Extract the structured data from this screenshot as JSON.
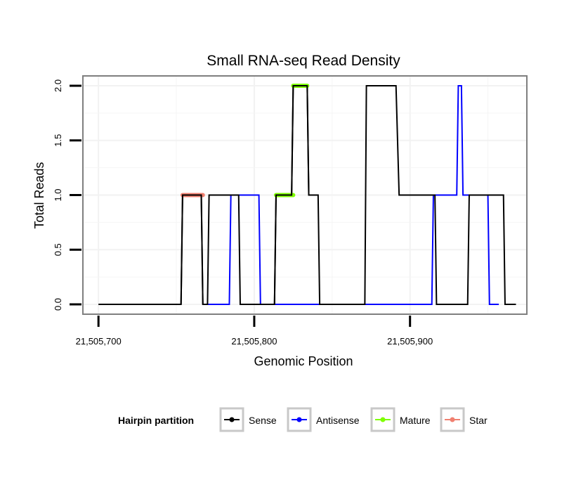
{
  "chart_data": {
    "type": "line",
    "title": "Small RNA-seq Read Density",
    "xlabel": "Genomic Position",
    "ylabel": "Total Reads",
    "xlim": [
      21505690,
      21505975
    ],
    "ylim": [
      -0.09,
      2.09
    ],
    "x_ticks": [
      21505700,
      21505800,
      21505900
    ],
    "x_tick_labels": [
      "21,505,700",
      "21,505,800",
      "21,505,900"
    ],
    "y_ticks": [
      0,
      0.5,
      1,
      1.5,
      2
    ],
    "y_tick_labels": [
      "0.0",
      "0.5",
      "1.0",
      "1.5",
      "2.0"
    ],
    "grid": true,
    "legend_title": "Hairpin partition",
    "legend_position": "bottom",
    "series": [
      {
        "name": "Sense",
        "color": "#000000",
        "points": [
          [
            21505700,
            0
          ],
          [
            21505753,
            0
          ],
          [
            21505754,
            1
          ],
          [
            21505766,
            1
          ],
          [
            21505767,
            0
          ],
          [
            21505770,
            0
          ],
          [
            21505771,
            1
          ],
          [
            21505790,
            1
          ],
          [
            21505791,
            0
          ],
          [
            21505813,
            0
          ],
          [
            21505814,
            1
          ],
          [
            21505824,
            1
          ],
          [
            21505825,
            2
          ],
          [
            21505834,
            2
          ],
          [
            21505835,
            1
          ],
          [
            21505841,
            1
          ],
          [
            21505842,
            0
          ],
          [
            21505871,
            0
          ],
          [
            21505872,
            2
          ],
          [
            21505891,
            2
          ],
          [
            21505893,
            1
          ],
          [
            21505916,
            1
          ],
          [
            21505917,
            0
          ],
          [
            21505937,
            0
          ],
          [
            21505938,
            1
          ],
          [
            21505960,
            1
          ],
          [
            21505961,
            0
          ],
          [
            21505968,
            0
          ]
        ]
      },
      {
        "name": "Antisense",
        "color": "#0000ff",
        "points": [
          [
            21505768,
            0
          ],
          [
            21505784,
            0
          ],
          [
            21505785,
            1
          ],
          [
            21505803,
            1
          ],
          [
            21505804,
            0
          ],
          [
            21505815,
            0
          ],
          [
            21505914,
            0
          ],
          [
            21505915,
            1
          ],
          [
            21505930,
            1
          ],
          [
            21505931,
            2
          ],
          [
            21505933,
            2
          ],
          [
            21505934,
            1
          ],
          [
            21505950,
            1
          ],
          [
            21505951,
            0
          ],
          [
            21505957,
            0
          ]
        ]
      },
      {
        "name": "Mature",
        "color": "#7fff00",
        "segments": [
          [
            21505814,
            21505825,
            1
          ],
          [
            21505825,
            21505834,
            2
          ]
        ]
      },
      {
        "name": "Star",
        "color": "#f08070",
        "segments": [
          [
            21505754,
            21505767,
            1
          ]
        ]
      }
    ]
  }
}
